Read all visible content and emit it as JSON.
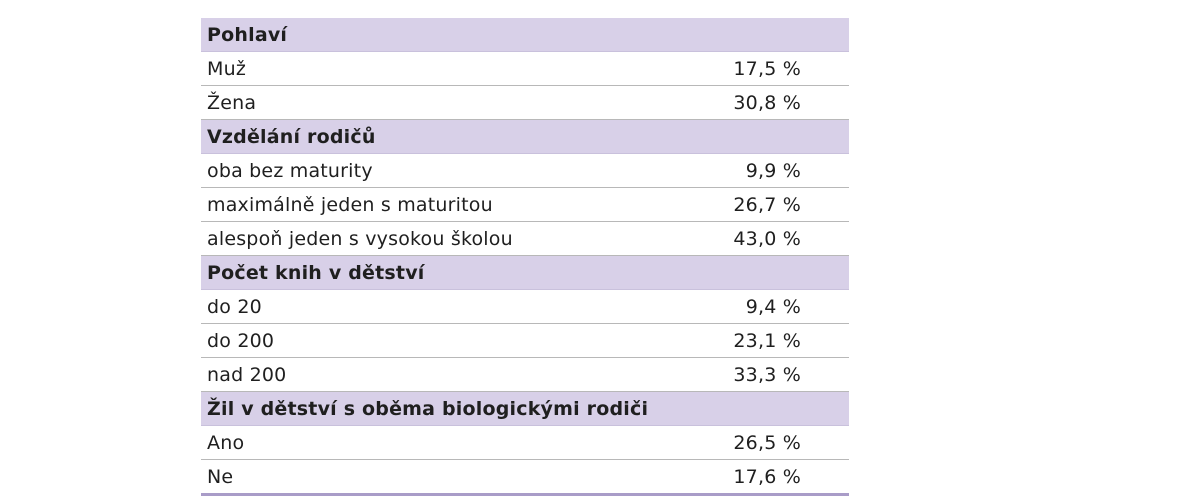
{
  "sections": [
    {
      "title": "Pohlaví",
      "rows": [
        {
          "label": "Muž",
          "value": "17,5 %"
        },
        {
          "label": "Žena",
          "value": "30,8 %"
        }
      ]
    },
    {
      "title": "Vzdělání rodičů",
      "rows": [
        {
          "label": "oba bez maturity",
          "value": "9,9 %"
        },
        {
          "label": "maximálně jeden s maturitou",
          "value": "26,7 %"
        },
        {
          "label": "alespoň jeden s vysokou školou",
          "value": "43,0 %"
        }
      ]
    },
    {
      "title": "Počet knih v dětství",
      "rows": [
        {
          "label": "do 20",
          "value": "9,4 %"
        },
        {
          "label": "do 200",
          "value": "23,1 %"
        },
        {
          "label": "nad 200",
          "value": "33,3 %"
        }
      ]
    },
    {
      "title": "Žil v dětství s oběma biologickými rodiči",
      "rows": [
        {
          "label": "Ano",
          "value": "26,5 %"
        },
        {
          "label": "Ne",
          "value": "17,6 %"
        }
      ]
    }
  ],
  "colors": {
    "header_bg": "#d8d0e8",
    "bottom_rule": "#a99cc8"
  }
}
